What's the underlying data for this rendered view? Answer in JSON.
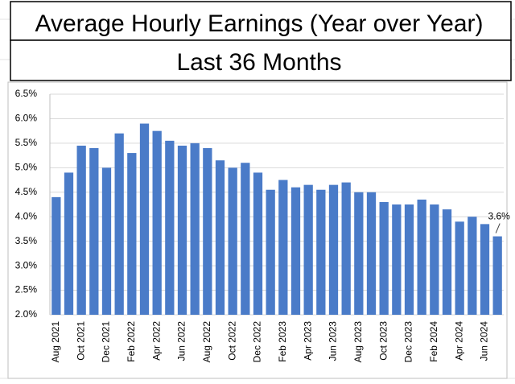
{
  "chart_data": {
    "type": "bar",
    "title": "Average Hourly Earnings (Year over Year)",
    "subtitle": "Last 36 Months",
    "categories": [
      "Aug 2021",
      null,
      "Oct 2021",
      null,
      "Dec 2021",
      null,
      "Feb 2022",
      null,
      "Apr 2022",
      null,
      "Jun 2022",
      null,
      "Aug 2022",
      null,
      "Oct 2022",
      null,
      "Dec 2022",
      null,
      "Feb 2023",
      null,
      "Apr 2023",
      null,
      "Jun 2023",
      null,
      "Aug 2023",
      null,
      "Oct 2023",
      null,
      "Dec 2023",
      null,
      "Feb 2024",
      null,
      "Apr 2024",
      null,
      "Jun 2024",
      null
    ],
    "values": [
      4.4,
      4.9,
      5.45,
      5.4,
      5.0,
      5.7,
      5.3,
      5.9,
      5.75,
      5.55,
      5.45,
      5.5,
      5.4,
      5.15,
      5.0,
      5.1,
      4.9,
      4.55,
      4.75,
      4.6,
      4.65,
      4.55,
      4.65,
      4.7,
      4.5,
      4.5,
      4.3,
      4.25,
      4.25,
      4.35,
      4.25,
      4.15,
      3.9,
      4.0,
      3.85,
      3.6
    ],
    "value_labels": [
      null,
      null,
      null,
      null,
      null,
      null,
      null,
      null,
      null,
      null,
      null,
      null,
      null,
      null,
      null,
      null,
      null,
      null,
      null,
      null,
      null,
      null,
      null,
      null,
      null,
      null,
      null,
      null,
      null,
      null,
      null,
      null,
      null,
      null,
      null,
      "3.6%"
    ],
    "color": "#4a7bc8",
    "ylim": [
      2.0,
      6.5
    ],
    "yticks": [
      {
        "value": 2.0,
        "label": "2.0%"
      },
      {
        "value": 2.5,
        "label": "2.5%"
      },
      {
        "value": 3.0,
        "label": "3.0%"
      },
      {
        "value": 3.5,
        "label": "3.5%"
      },
      {
        "value": 4.0,
        "label": "4.0%"
      },
      {
        "value": 4.5,
        "label": "4.5%"
      },
      {
        "value": 5.0,
        "label": "5.0%"
      },
      {
        "value": 5.5,
        "label": "5.5%"
      },
      {
        "value": 6.0,
        "label": "6.0%"
      },
      {
        "value": 6.5,
        "label": "6.5%"
      }
    ],
    "grid": true
  }
}
